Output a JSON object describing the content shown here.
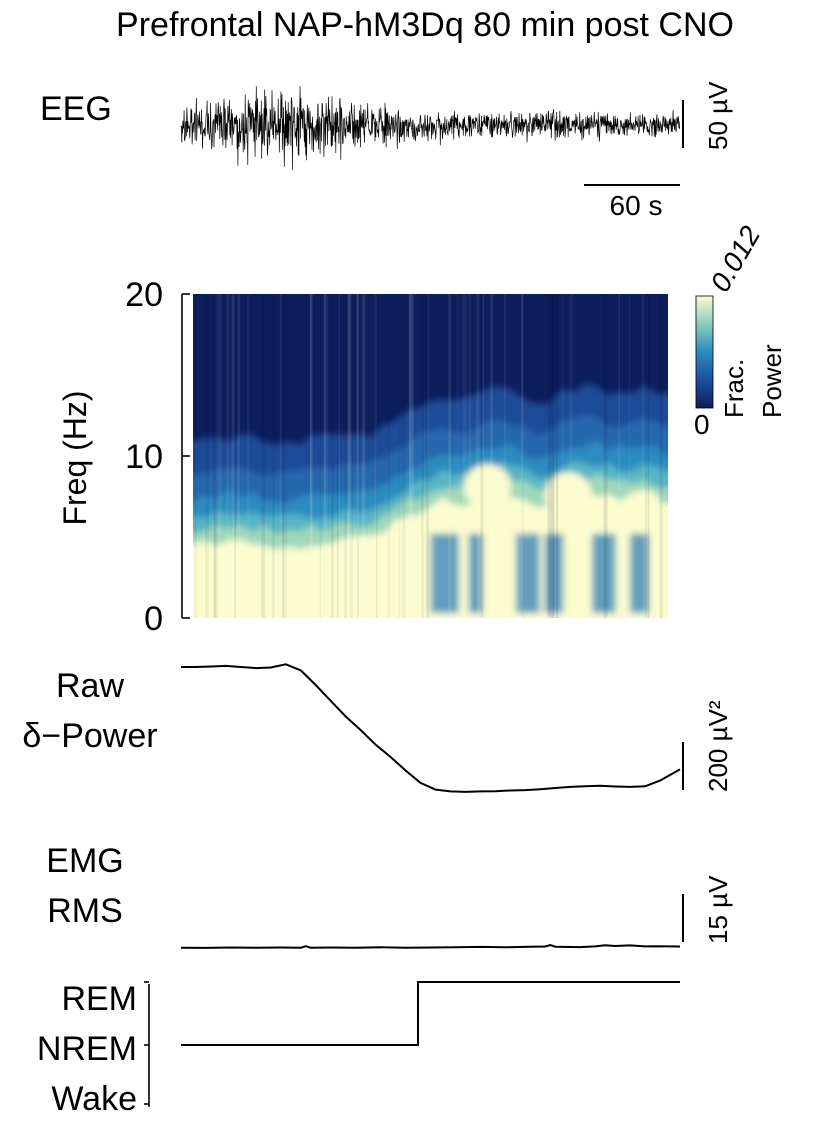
{
  "title": "Prefrontal NAP-hM3Dq 80 min post CNO",
  "colors": {
    "trace": "#000000",
    "cmap_low": "#0c1e5c",
    "cmap_mid": "#2a8cbf",
    "cmap_high": "#fbfdce"
  },
  "chart_data": [
    {
      "type": "line",
      "name": "eeg",
      "label": "EEG",
      "x_scalebar": {
        "value": 60,
        "label": "60 s"
      },
      "y_scalebar": {
        "value": 50,
        "label": "50 µV"
      },
      "amplitude_envelope": [
        34,
        36,
        40,
        44,
        48,
        44,
        40,
        32,
        26,
        22,
        20,
        18,
        18,
        20,
        20,
        18,
        20,
        18,
        18,
        18
      ]
    },
    {
      "type": "heatmap",
      "name": "spectrogram",
      "ylabel": "Freq (Hz)",
      "ylim": [
        0,
        20
      ],
      "yticks": [
        0,
        10,
        20
      ],
      "colorbar": {
        "label_line1": "Frac.",
        "label_line2": "Power",
        "min_label": "0",
        "max_label": "0.012",
        "range": [
          0,
          0.012
        ]
      },
      "dominant_band_upper_hz": [
        4.4,
        4.6,
        4.7,
        4.5,
        4.3,
        4.6,
        4.9,
        4.8,
        5.8,
        6.6,
        7.2,
        7.0,
        7.6,
        7.4,
        6.8,
        7.6,
        7.8,
        7.4,
        7.6,
        7.2
      ],
      "theta_hotspots": [
        {
          "center_t": 0.62,
          "center_hz": 8.1,
          "width_t": 0.05,
          "width_hz": 1.4
        },
        {
          "center_t": 0.79,
          "center_hz": 7.6,
          "width_t": 0.05,
          "width_hz": 1.4
        },
        {
          "center_t": 0.95,
          "center_hz": 6.6,
          "width_t": 0.04,
          "width_hz": 1.3
        }
      ]
    },
    {
      "type": "line",
      "name": "delta-power",
      "label_line1": "Raw",
      "label_line2": "δ−Power",
      "y_scalebar": {
        "value": 200,
        "label": "200 µV²"
      },
      "x": [
        0,
        0.03,
        0.06,
        0.09,
        0.12,
        0.15,
        0.18,
        0.21,
        0.24,
        0.27,
        0.3,
        0.33,
        0.36,
        0.39,
        0.42,
        0.45,
        0.48,
        0.51,
        0.54,
        0.57,
        0.6,
        0.63,
        0.66,
        0.69,
        0.72,
        0.75,
        0.78,
        0.81,
        0.84,
        0.87,
        0.9,
        0.93,
        0.96,
        1.0
      ],
      "y": [
        760,
        760,
        762,
        765,
        760,
        755,
        758,
        772,
        745,
        680,
        610,
        540,
        480,
        415,
        360,
        300,
        245,
        215,
        207,
        205,
        207,
        208,
        211,
        213,
        217,
        222,
        227,
        230,
        232,
        229,
        227,
        230,
        255,
        305
      ],
      "ylim": [
        0,
        800
      ]
    },
    {
      "type": "line",
      "name": "emg-rms",
      "label_line1": "EMG",
      "label_line2": "RMS",
      "y_scalebar": {
        "value": 15,
        "label": "15 µV"
      },
      "x": [
        0,
        0.05,
        0.1,
        0.15,
        0.2,
        0.24,
        0.25,
        0.26,
        0.3,
        0.35,
        0.4,
        0.45,
        0.5,
        0.55,
        0.6,
        0.65,
        0.7,
        0.73,
        0.74,
        0.75,
        0.8,
        0.83,
        0.85,
        0.87,
        0.9,
        0.93,
        0.95,
        1.0
      ],
      "y": [
        1.2,
        1.1,
        1.3,
        1.2,
        1.3,
        1.2,
        2.0,
        1.2,
        1.3,
        1.2,
        1.4,
        1.2,
        1.3,
        1.4,
        1.6,
        1.4,
        1.7,
        1.8,
        2.6,
        1.7,
        1.5,
        1.9,
        2.5,
        2.1,
        2.4,
        1.9,
        2.0,
        1.8
      ],
      "ylim": [
        0,
        25
      ]
    },
    {
      "type": "line",
      "name": "hypnogram",
      "states": [
        "REM",
        "NREM",
        "Wake"
      ],
      "segments": [
        {
          "t_start": 0,
          "t_end": 0.475,
          "state": "NREM"
        },
        {
          "t_start": 0.475,
          "t_end": 1.0,
          "state": "REM"
        }
      ]
    }
  ]
}
